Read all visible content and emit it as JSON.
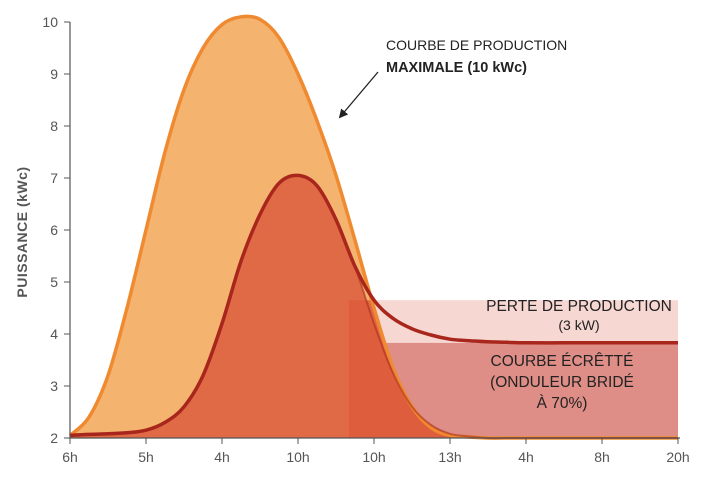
{
  "chart_data": {
    "type": "area",
    "ylabel": "PUISSANCE (kWc)",
    "ylim": [
      2,
      10
    ],
    "yticks": [
      2,
      3,
      4,
      5,
      6,
      7,
      8,
      9,
      10
    ],
    "xticks": [
      "6h",
      "5h",
      "4h",
      "10h",
      "10h",
      "13h",
      "4h",
      "8h",
      "20h"
    ],
    "grid": false,
    "colors": {
      "max_fill": "#f4b36f",
      "max_line": "#ef8a30",
      "clipped_fill": "#e06a45",
      "clipped_line": "#a8261c",
      "loss_fill": "#f7d7d2",
      "overlap_fill": "#dc5a3c",
      "tail_fill": "#de8e86"
    },
    "series": [
      {
        "x": [
          0,
          0.25,
          0.5,
          0.75,
          1,
          1.25,
          1.5,
          1.75,
          2,
          2.25,
          2.5,
          2.75,
          3,
          3.25,
          3.5,
          3.75,
          4,
          4.25,
          4.5,
          4.75,
          5,
          5.25,
          5.5,
          5.75,
          6,
          6.5,
          7,
          7.5,
          8
        ],
        "y": [
          2.05,
          2.4,
          3.2,
          4.5,
          6.0,
          7.5,
          8.7,
          9.5,
          9.95,
          10.1,
          10.05,
          9.7,
          9.0,
          8.1,
          7.05,
          5.8,
          4.5,
          3.35,
          2.6,
          2.2,
          2.05,
          2.02,
          2.0,
          2.0,
          2.0,
          2.0,
          2.0,
          2.0,
          2.0
        ]
      },
      {
        "x": [
          0,
          0.25,
          0.5,
          0.75,
          1,
          1.25,
          1.5,
          1.75,
          2,
          2.25,
          2.5,
          2.75,
          3,
          3.25,
          3.5,
          3.75,
          4,
          4.25,
          4.5,
          4.75,
          5,
          5.25,
          5.5,
          5.75,
          6,
          6.5,
          7,
          7.5,
          8
        ],
        "y": [
          2.05,
          2.07,
          2.08,
          2.1,
          2.15,
          2.3,
          2.6,
          3.2,
          4.2,
          5.4,
          6.3,
          6.9,
          7.05,
          6.85,
          6.2,
          5.3,
          4.2,
          3.25,
          2.6,
          2.25,
          2.08,
          2.03,
          2.0,
          2.0,
          2.0,
          2.0,
          2.0,
          2.0,
          2.0
        ]
      },
      {
        "x": [
          0,
          0.25,
          0.5,
          0.75,
          1,
          1.25,
          1.5,
          1.75,
          2,
          2.25,
          2.5,
          2.75,
          3,
          3.25,
          3.5,
          3.75,
          4,
          4.25,
          4.5,
          4.75,
          5,
          5.25,
          5.5,
          5.75,
          6,
          6.5,
          7,
          7.5,
          8
        ],
        "y": [
          2.05,
          2.07,
          2.08,
          2.1,
          2.15,
          2.3,
          2.6,
          3.2,
          4.2,
          5.4,
          6.3,
          6.9,
          7.05,
          6.85,
          6.2,
          5.3,
          4.65,
          4.3,
          4.1,
          3.98,
          3.9,
          3.87,
          3.85,
          3.84,
          3.83,
          3.83,
          3.83,
          3.83,
          3.83
        ]
      }
    ],
    "loss_band": {
      "x_start": 3.67,
      "x_end": 8,
      "y_low": 3.83,
      "y_high": 4.65
    },
    "tail_region": {
      "x_start": 3.67,
      "x_end": 8,
      "y_low": 2,
      "y_high": 3.83
    },
    "annotations": {
      "max_line1": "COURBE DE PRODUCTION",
      "max_line2": "MAXIMALE (10 kWc)",
      "loss_line1": "PERTE DE PRODUCTION",
      "loss_line2": "(3 kW)",
      "clip_line1": "COURBE ÉCRÊTTÉ",
      "clip_line2": "(ONDULEUR BRIDÉ",
      "clip_line3": "À 70%)"
    }
  }
}
